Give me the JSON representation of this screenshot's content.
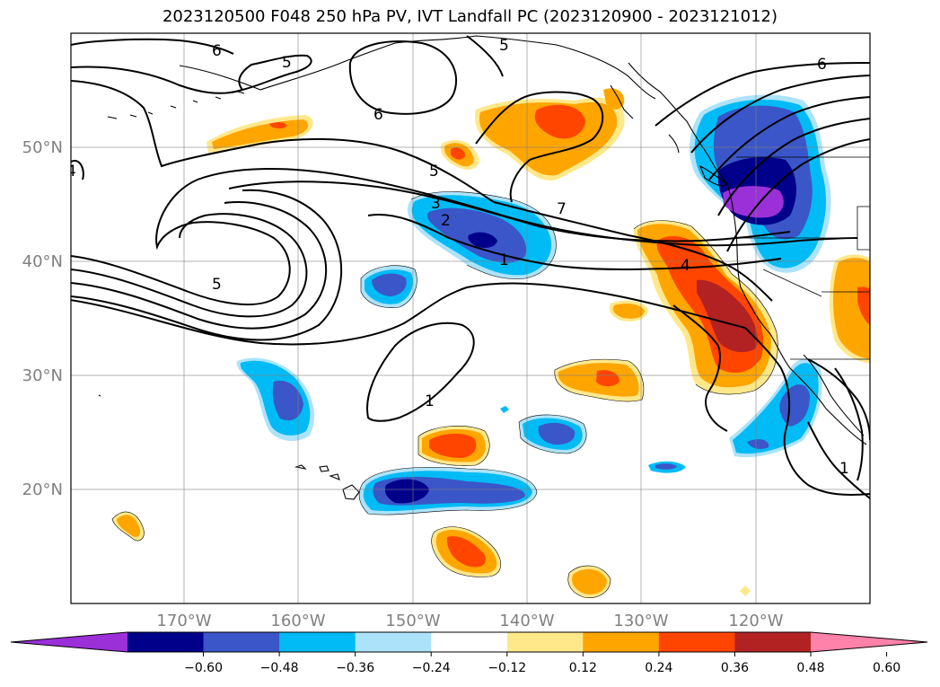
{
  "title": "2023120500 F048 250 hPa PV, IVT Landfall PC (2023120900 - 2023121012)",
  "map": {
    "lon_range": [
      -180,
      -110
    ],
    "lat_range": [
      10,
      60
    ],
    "lat_ticks": [
      "50°N",
      "40°N",
      "30°N",
      "20°N"
    ],
    "lon_ticks": [
      "170°W",
      "160°W",
      "150°W",
      "140°W",
      "130°W",
      "120°W"
    ],
    "grid": true,
    "contour_labels": [
      "6",
      "5",
      "5",
      "6",
      "4",
      "5",
      "3",
      "2",
      "1",
      "7",
      "4",
      "6",
      "5",
      "1",
      "1"
    ]
  },
  "colorbar": {
    "ticks": [
      "−0.60",
      "−0.48",
      "−0.36",
      "−0.24",
      "−0.12",
      "0.12",
      "0.24",
      "0.36",
      "0.48",
      "0.60"
    ],
    "colors": [
      "#9b30d9",
      "#00008b",
      "#3a56c8",
      "#00bbf5",
      "#ade3fa",
      "#ffffff",
      "#ffe88a",
      "#ffa500",
      "#ff4500",
      "#b22222",
      "#ff82ab"
    ]
  }
}
